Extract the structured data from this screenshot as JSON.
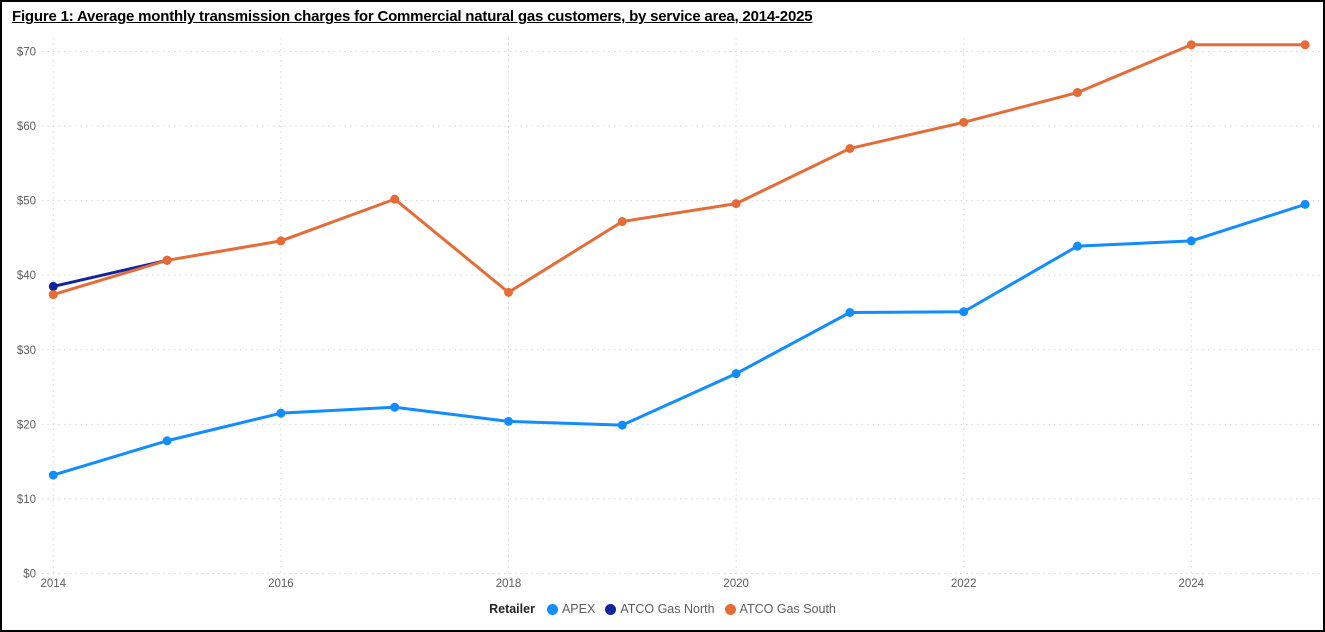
{
  "title": "Figure 1: Average monthly transmission charges for Commercial natural gas customers, by service area, 2014-2025",
  "legend": {
    "title": "Retailer"
  },
  "chart_data": {
    "type": "line",
    "title": "Figure 1: Average monthly transmission charges for Commercial natural gas customers, by service area, 2014-2025",
    "x": [
      2014,
      2015,
      2016,
      2017,
      2018,
      2019,
      2020,
      2021,
      2022,
      2023,
      2024,
      2025
    ],
    "x_tick_labels": [
      2014,
      2016,
      2018,
      2020,
      2022,
      2024
    ],
    "y_ticks": [
      0,
      10,
      20,
      30,
      40,
      50,
      60,
      70
    ],
    "y_tick_prefix": "$",
    "ylim": [
      0,
      70
    ],
    "grid": "dotted",
    "legend_position": "bottom",
    "series": [
      {
        "name": "APEX",
        "color": "#118DFF",
        "values": [
          13.2,
          17.8,
          21.5,
          22.3,
          20.4,
          19.9,
          26.8,
          35.0,
          35.1,
          43.9,
          44.6,
          49.5
        ]
      },
      {
        "name": "ATCO Gas North",
        "color": "#12239E",
        "values": [
          38.5,
          42.0,
          null,
          null,
          null,
          null,
          null,
          null,
          null,
          null,
          null,
          null
        ]
      },
      {
        "name": "ATCO Gas South",
        "color": "#E66C37",
        "values": [
          37.4,
          42.0,
          44.6,
          50.2,
          37.7,
          47.2,
          49.6,
          57.0,
          60.5,
          64.5,
          70.9,
          70.9
        ]
      }
    ]
  },
  "colors": {
    "axis_text": "#605E5C",
    "gridline": "#D6D6D6",
    "legend_text": "#605E5C",
    "legend_title_text": "#252423",
    "border": "#000000",
    "background": "#FFFFFF"
  }
}
